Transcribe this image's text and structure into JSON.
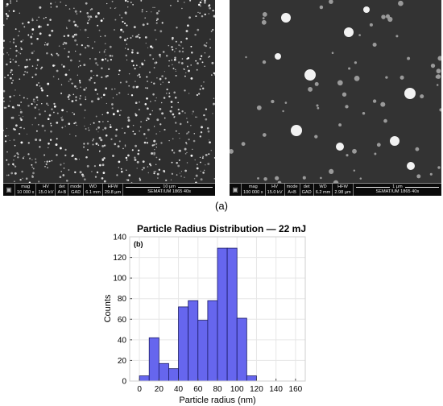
{
  "panel_a_label": "(a)",
  "sem_images": [
    {
      "databar": {
        "fields": [
          {
            "key": "mag",
            "value": "10 000 x"
          },
          {
            "key": "HV",
            "value": "15.0 kV"
          },
          {
            "key": "mode",
            "value": "A+B"
          },
          {
            "key": "det",
            "value": "GAD"
          },
          {
            "key": "WD",
            "value": "6.1 mm"
          },
          {
            "key": "HFW",
            "value": "29.8 µm"
          }
        ],
        "scale_label": "10 µm",
        "institution": "SEMAT/UM",
        "id": "1865 40s"
      }
    },
    {
      "databar": {
        "fields": [
          {
            "key": "mag",
            "value": "100 000 x"
          },
          {
            "key": "HV",
            "value": "15.0 kV"
          },
          {
            "key": "mode",
            "value": "A+B"
          },
          {
            "key": "det",
            "value": "GAD"
          },
          {
            "key": "WD",
            "value": "6.2 mm"
          },
          {
            "key": "HFW",
            "value": "2.98 µm"
          }
        ],
        "scale_label": "1 µm",
        "institution": "SEMAT/UM",
        "id": "1865 40s"
      }
    }
  ],
  "chart_data": {
    "type": "bar",
    "title": "Particle Radius Distribution — 22 mJ",
    "panel_label": "(b)",
    "xlabel": "Particle radius (nm)",
    "ylabel": "Counts",
    "xlim": [
      -10,
      170
    ],
    "ylim": [
      0,
      140
    ],
    "xticks": [
      0,
      20,
      40,
      60,
      80,
      100,
      120,
      140,
      160
    ],
    "yticks": [
      0,
      20,
      40,
      60,
      80,
      100,
      120,
      140
    ],
    "bin_edges": [
      0,
      10,
      20,
      30,
      40,
      50,
      60,
      70,
      80,
      90,
      100,
      110
    ],
    "values": [
      5,
      42,
      17,
      12,
      72,
      78,
      59,
      78,
      129,
      129,
      61,
      5
    ],
    "bar_color": "#6666ee",
    "grid": true
  }
}
